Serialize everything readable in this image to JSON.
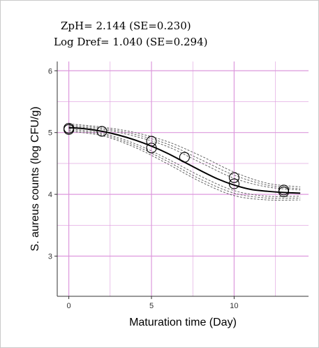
{
  "annotations": {
    "line1": "ZpH= 2.144 (SE=0.230)",
    "line2": "Log Dref= 1.040 (SE=0.294)"
  },
  "chart_data": {
    "type": "scatter",
    "xlabel": "Maturation time (Day)",
    "ylabel": "S. aureus counts (log CFU/g)",
    "xlim": [
      -0.7,
      14.5
    ],
    "ylim": [
      2.35,
      6.15
    ],
    "x_ticks": [
      0,
      5,
      10
    ],
    "y_ticks": [
      3,
      4,
      5,
      6
    ],
    "grid": true,
    "points": [
      {
        "x": 0,
        "y": 5.07
      },
      {
        "x": 0,
        "y": 5.05
      },
      {
        "x": 2,
        "y": 5.02
      },
      {
        "x": 5,
        "y": 4.86
      },
      {
        "x": 5,
        "y": 4.75
      },
      {
        "x": 7,
        "y": 4.6
      },
      {
        "x": 10,
        "y": 4.27
      },
      {
        "x": 10,
        "y": 4.17
      },
      {
        "x": 13,
        "y": 4.07
      },
      {
        "x": 13,
        "y": 4.04
      }
    ],
    "fit_line": {
      "x": [
        0,
        1,
        2,
        3,
        4,
        5,
        6,
        7,
        8,
        9,
        10,
        11,
        12,
        13,
        14
      ],
      "y": [
        5.08,
        5.06,
        5.02,
        4.96,
        4.88,
        4.78,
        4.66,
        4.52,
        4.38,
        4.25,
        4.15,
        4.08,
        4.05,
        4.03,
        4.02
      ]
    },
    "confidence_bands": [
      {
        "x": [
          0,
          2,
          4,
          6,
          8,
          10,
          12,
          14
        ],
        "y": [
          5.14,
          5.09,
          5.0,
          4.85,
          4.62,
          4.36,
          4.18,
          4.12
        ]
      },
      {
        "x": [
          0,
          2,
          4,
          6,
          8,
          10,
          12,
          14
        ],
        "y": [
          5.12,
          5.07,
          4.97,
          4.81,
          4.56,
          4.31,
          4.15,
          4.09
        ]
      },
      {
        "x": [
          0,
          2,
          4,
          6,
          8,
          10,
          12,
          14
        ],
        "y": [
          5.1,
          5.05,
          4.94,
          4.77,
          4.51,
          4.26,
          4.12,
          4.07
        ]
      },
      {
        "x": [
          0,
          2,
          4,
          6,
          8,
          10,
          12,
          14
        ],
        "y": [
          5.06,
          4.99,
          4.82,
          4.57,
          4.29,
          4.06,
          3.97,
          3.97
        ]
      },
      {
        "x": [
          0,
          2,
          4,
          6,
          8,
          10,
          12,
          14
        ],
        "y": [
          5.04,
          4.97,
          4.79,
          4.53,
          4.24,
          4.02,
          3.94,
          3.94
        ]
      },
      {
        "x": [
          0,
          2,
          4,
          6,
          8,
          10,
          12,
          14
        ],
        "y": [
          5.02,
          4.95,
          4.76,
          4.49,
          4.2,
          3.98,
          3.91,
          3.91
        ]
      }
    ],
    "colors": {
      "grid": "#dd99dd",
      "points": "#000000",
      "fit": "#000000",
      "bands": "#666666"
    }
  }
}
